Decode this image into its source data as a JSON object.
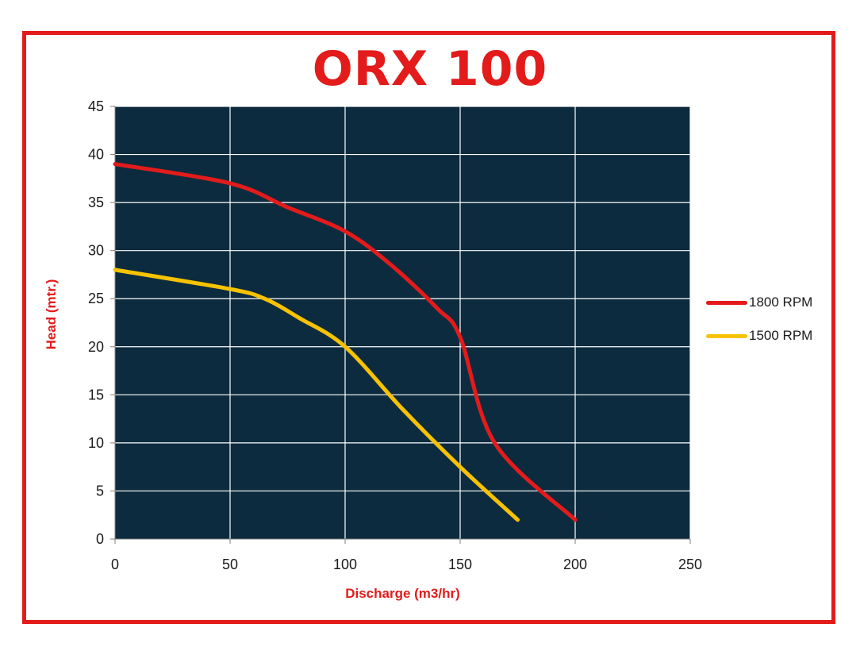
{
  "chart_data": {
    "type": "line",
    "title": "ORX 100",
    "xlabel": "Discharge (m3/hr)",
    "ylabel": "Head (mtr.)",
    "xlim": [
      0,
      250
    ],
    "ylim": [
      0,
      45
    ],
    "xticks": [
      0,
      50,
      100,
      150,
      200,
      250
    ],
    "yticks": [
      0,
      5,
      10,
      15,
      20,
      25,
      30,
      35,
      40,
      45
    ],
    "grid": true,
    "plot_background": "#0d2b3e",
    "legend_position": "right",
    "series": [
      {
        "name": "1800 RPM",
        "color": "#e31b1b",
        "points": [
          [
            0,
            39
          ],
          [
            50,
            37
          ],
          [
            75,
            34.5
          ],
          [
            100,
            32
          ],
          [
            120,
            28.5
          ],
          [
            140,
            24
          ],
          [
            150,
            21
          ],
          [
            165,
            10
          ],
          [
            200,
            2
          ]
        ]
      },
      {
        "name": "1500 RPM",
        "color": "#f7c200",
        "points": [
          [
            0,
            28
          ],
          [
            50,
            26
          ],
          [
            65,
            25
          ],
          [
            80,
            23
          ],
          [
            100,
            20
          ],
          [
            125,
            13.5
          ],
          [
            150,
            7.5
          ],
          [
            175,
            2
          ]
        ]
      }
    ]
  }
}
